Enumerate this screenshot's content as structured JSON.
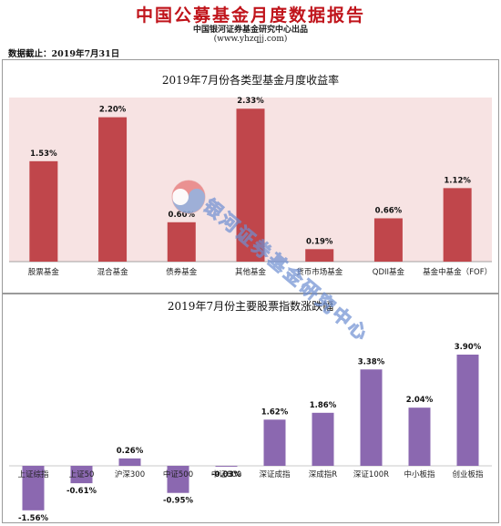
{
  "header": {
    "title": "中国公募基金月度数据报告",
    "subtitle": "中国银河证券基金研究中心出品",
    "url": "(www.yhzqjj.com)",
    "date_line": "数据截止：2019年7月31日"
  },
  "watermark": {
    "text": "银河证券基金研究中心"
  },
  "colors": {
    "red_bar": "#c0464b",
    "purple_bar": "#8b68b0",
    "plot_bg": "#f7e3e3"
  },
  "chart_data": [
    {
      "type": "bar",
      "title": "2019年7月份各类型基金月度收益率",
      "categories": [
        "股票基金",
        "混合基金",
        "债券基金",
        "其他基金",
        "货币市场基金",
        "QDII基金",
        "基金中基金（FOF）"
      ],
      "values": [
        1.53,
        2.2,
        0.6,
        2.33,
        0.19,
        0.66,
        1.12
      ],
      "value_labels": [
        "1.53%",
        "2.20%",
        "0.60%",
        "2.33%",
        "0.19%",
        "0.66%",
        "1.12%"
      ],
      "ylim": [
        0,
        2.5
      ],
      "grid": false,
      "bar_color": "#c0464b"
    },
    {
      "type": "bar",
      "title": "2019年7月份主要股票指数涨跌幅",
      "categories": [
        "上证综指",
        "上证50",
        "沪深300",
        "中证500",
        "中证800",
        "深证成指",
        "深成指R",
        "深证100R",
        "中小板指",
        "创业板指"
      ],
      "values": [
        -1.56,
        -0.61,
        0.26,
        -0.95,
        -0.03,
        1.62,
        1.86,
        3.38,
        2.04,
        3.9
      ],
      "value_labels": [
        "-1.56%",
        "-0.61%",
        "0.26%",
        "-0.95%",
        "-0.03%",
        "1.62%",
        "1.86%",
        "3.38%",
        "2.04%",
        "3.90%"
      ],
      "ylim": [
        -1.8,
        4.1
      ],
      "grid": false,
      "bar_color": "#8b68b0"
    }
  ]
}
